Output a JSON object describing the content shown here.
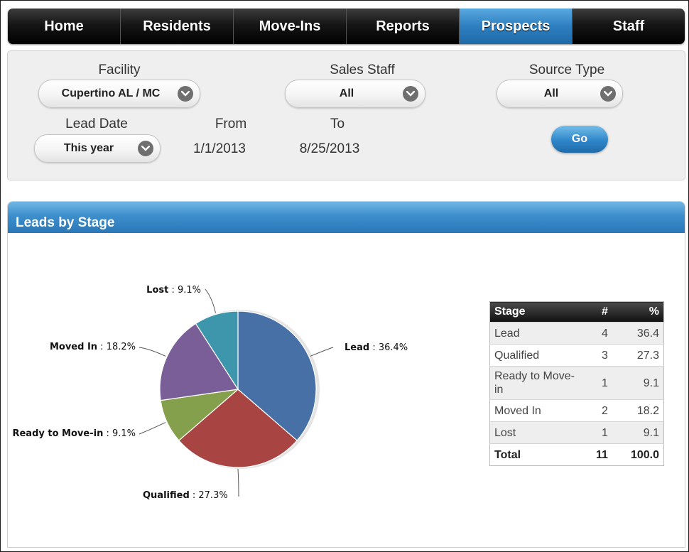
{
  "nav": {
    "tabs": [
      {
        "label": "Home",
        "active": false
      },
      {
        "label": "Residents",
        "active": false
      },
      {
        "label": "Move-Ins",
        "active": false
      },
      {
        "label": "Reports",
        "active": false
      },
      {
        "label": "Prospects",
        "active": true
      },
      {
        "label": "Staff",
        "active": false
      }
    ]
  },
  "filters": {
    "facility": {
      "label": "Facility",
      "value": "Cupertino AL / MC"
    },
    "sales_staff": {
      "label": "Sales Staff",
      "value": "All"
    },
    "source_type": {
      "label": "Source Type",
      "value": "All"
    },
    "lead_date": {
      "label": "Lead Date",
      "value": "This year"
    },
    "from": {
      "label": "From",
      "value": "1/1/2013"
    },
    "to": {
      "label": "To",
      "value": "8/25/2013"
    },
    "go_label": "Go"
  },
  "panel": {
    "title": "Leads by Stage"
  },
  "chart_data": {
    "type": "pie",
    "slices": [
      {
        "name": "Lead",
        "value": 36.4,
        "label_value": "36.4%",
        "color": "#4670a6"
      },
      {
        "name": "Qualified",
        "value": 27.3,
        "label_value": "27.3%",
        "color": "#a84442"
      },
      {
        "name": "Ready to Move-in",
        "value": 9.1,
        "label_value": "9.1%",
        "color": "#84a04c"
      },
      {
        "name": "Moved In",
        "value": 18.2,
        "label_value": "18.2%",
        "color": "#7a5e97"
      },
      {
        "name": "Lost",
        "value": 9.1,
        "label_value": "9.1%",
        "color": "#3d96ab"
      }
    ]
  },
  "table": {
    "headers": {
      "stage": "Stage",
      "count": "#",
      "pct": "%"
    },
    "rows": [
      {
        "stage": "Lead",
        "count": "4",
        "pct": "36.4"
      },
      {
        "stage": "Qualified",
        "count": "3",
        "pct": "27.3"
      },
      {
        "stage": "Ready to Move-in",
        "count": "1",
        "pct": "9.1"
      },
      {
        "stage": "Moved In",
        "count": "2",
        "pct": "18.2"
      },
      {
        "stage": "Lost",
        "count": "1",
        "pct": "9.1"
      }
    ],
    "total": {
      "stage": "Total",
      "count": "11",
      "pct": "100.0"
    }
  }
}
